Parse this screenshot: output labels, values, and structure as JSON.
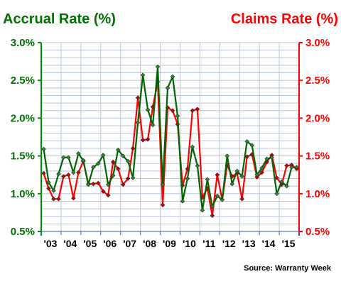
{
  "chart_data": {
    "type": "line",
    "left_title": "Accrual Rate (%)",
    "right_title": "Claims Rate (%)",
    "source": "Source: Warranty Week",
    "x_tick_labels": [
      "'03",
      "'04",
      "'05",
      "'06",
      "'07",
      "'08",
      "'09",
      "'10",
      "'11",
      "'12",
      "'13",
      "'14",
      "'15"
    ],
    "y_tick_labels": [
      "0.5%",
      "1.0%",
      "1.5%",
      "2.0%",
      "2.5%",
      "3.0%"
    ],
    "y_ticks": [
      0.5,
      1.0,
      1.5,
      2.0,
      2.5,
      3.0
    ],
    "ylim": [
      0.5,
      3.0
    ],
    "x_start_year": 2003,
    "quarters": 52,
    "grid": true,
    "series": [
      {
        "name": "Accrual Rate (%)",
        "axis": "left",
        "color": "#006400",
        "marker_color": "#2e8b2e",
        "values": [
          1.59,
          1.15,
          1.04,
          1.26,
          1.48,
          1.48,
          1.28,
          1.53,
          1.44,
          1.12,
          1.35,
          1.4,
          1.51,
          1.12,
          1.24,
          1.58,
          1.5,
          1.43,
          1.21,
          1.94,
          2.57,
          2.11,
          1.91,
          2.68,
          1.12,
          2.4,
          2.55,
          2.03,
          0.9,
          1.2,
          1.62,
          1.37,
          0.78,
          1.19,
          0.83,
          0.97,
          0.92,
          1.5,
          1.13,
          1.3,
          1.23,
          1.69,
          1.64,
          1.25,
          1.34,
          1.46,
          1.48,
          1.0,
          1.16,
          1.1,
          1.35,
          1.35
        ]
      },
      {
        "name": "Claims Rate (%)",
        "axis": "right",
        "color": "#ff0000",
        "marker_color": "#cc0000",
        "values": [
          1.27,
          1.07,
          0.93,
          0.93,
          1.23,
          1.25,
          0.94,
          1.28,
          1.43,
          1.13,
          1.13,
          1.14,
          1.03,
          0.98,
          1.42,
          1.33,
          1.12,
          1.2,
          1.6,
          2.27,
          1.71,
          1.72,
          2.15,
          2.48,
          0.85,
          2.14,
          2.1,
          1.92,
          1.11,
          1.33,
          2.1,
          2.12,
          0.95,
          1.07,
          0.71,
          1.25,
          0.92,
          1.38,
          1.23,
          1.27,
          0.93,
          1.49,
          1.52,
          1.22,
          1.28,
          1.42,
          1.51,
          1.21,
          1.12,
          1.37,
          1.38,
          1.33
        ]
      }
    ]
  }
}
